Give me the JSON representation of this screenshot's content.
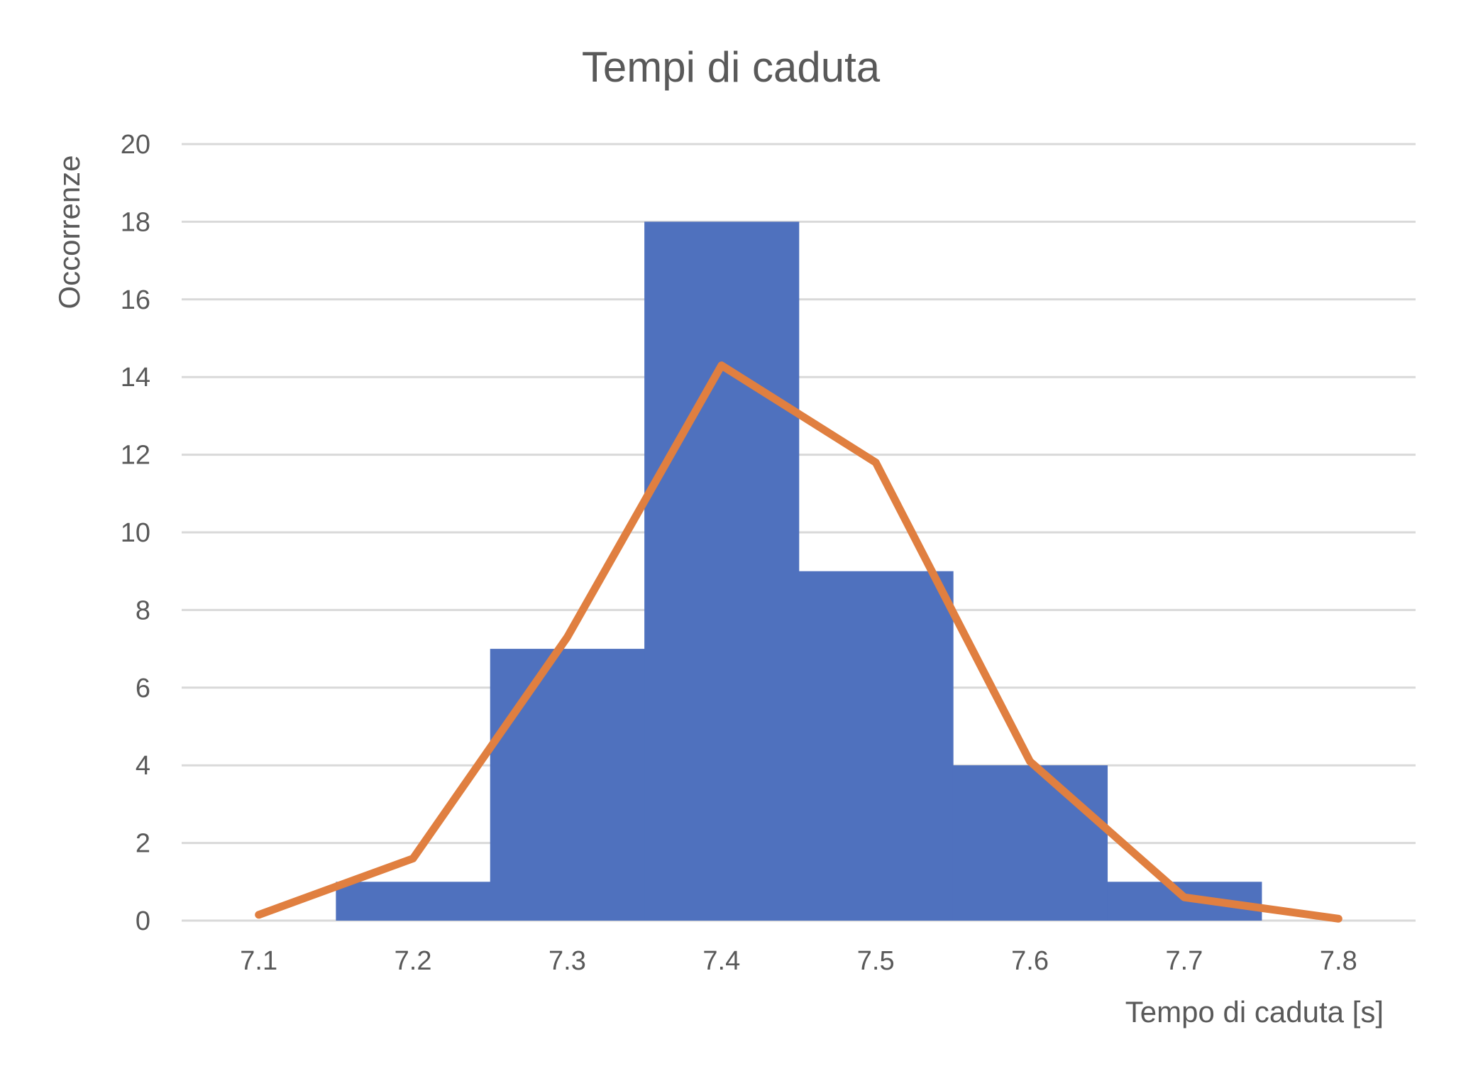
{
  "chart_data": {
    "type": "bar",
    "title": "Tempi di caduta",
    "xlabel": "Tempo di caduta [s]",
    "ylabel": "Occorrenze",
    "x_ticks": [
      "7.1",
      "7.2",
      "7.3",
      "7.4",
      "7.5",
      "7.6",
      "7.7",
      "7.8"
    ],
    "y_ticks": [
      "0",
      "2",
      "4",
      "6",
      "8",
      "10",
      "12",
      "14",
      "16",
      "18",
      "20"
    ],
    "xlim": [
      7.05,
      7.85
    ],
    "ylim": [
      0,
      20
    ],
    "grid": true,
    "legend": "none",
    "histogram": {
      "bin_edges": [
        7.15,
        7.25,
        7.35,
        7.45,
        7.55,
        7.65,
        7.75
      ],
      "counts": [
        1,
        7,
        18,
        9,
        4,
        1
      ],
      "color": "#4F71BE"
    },
    "series": [
      {
        "type": "line",
        "x": [
          7.1,
          7.2,
          7.3,
          7.4,
          7.5,
          7.6,
          7.7,
          7.8
        ],
        "y": [
          0.15,
          1.6,
          7.3,
          14.3,
          11.8,
          4.1,
          0.6,
          0.05
        ],
        "color": "#E07F40"
      }
    ]
  }
}
